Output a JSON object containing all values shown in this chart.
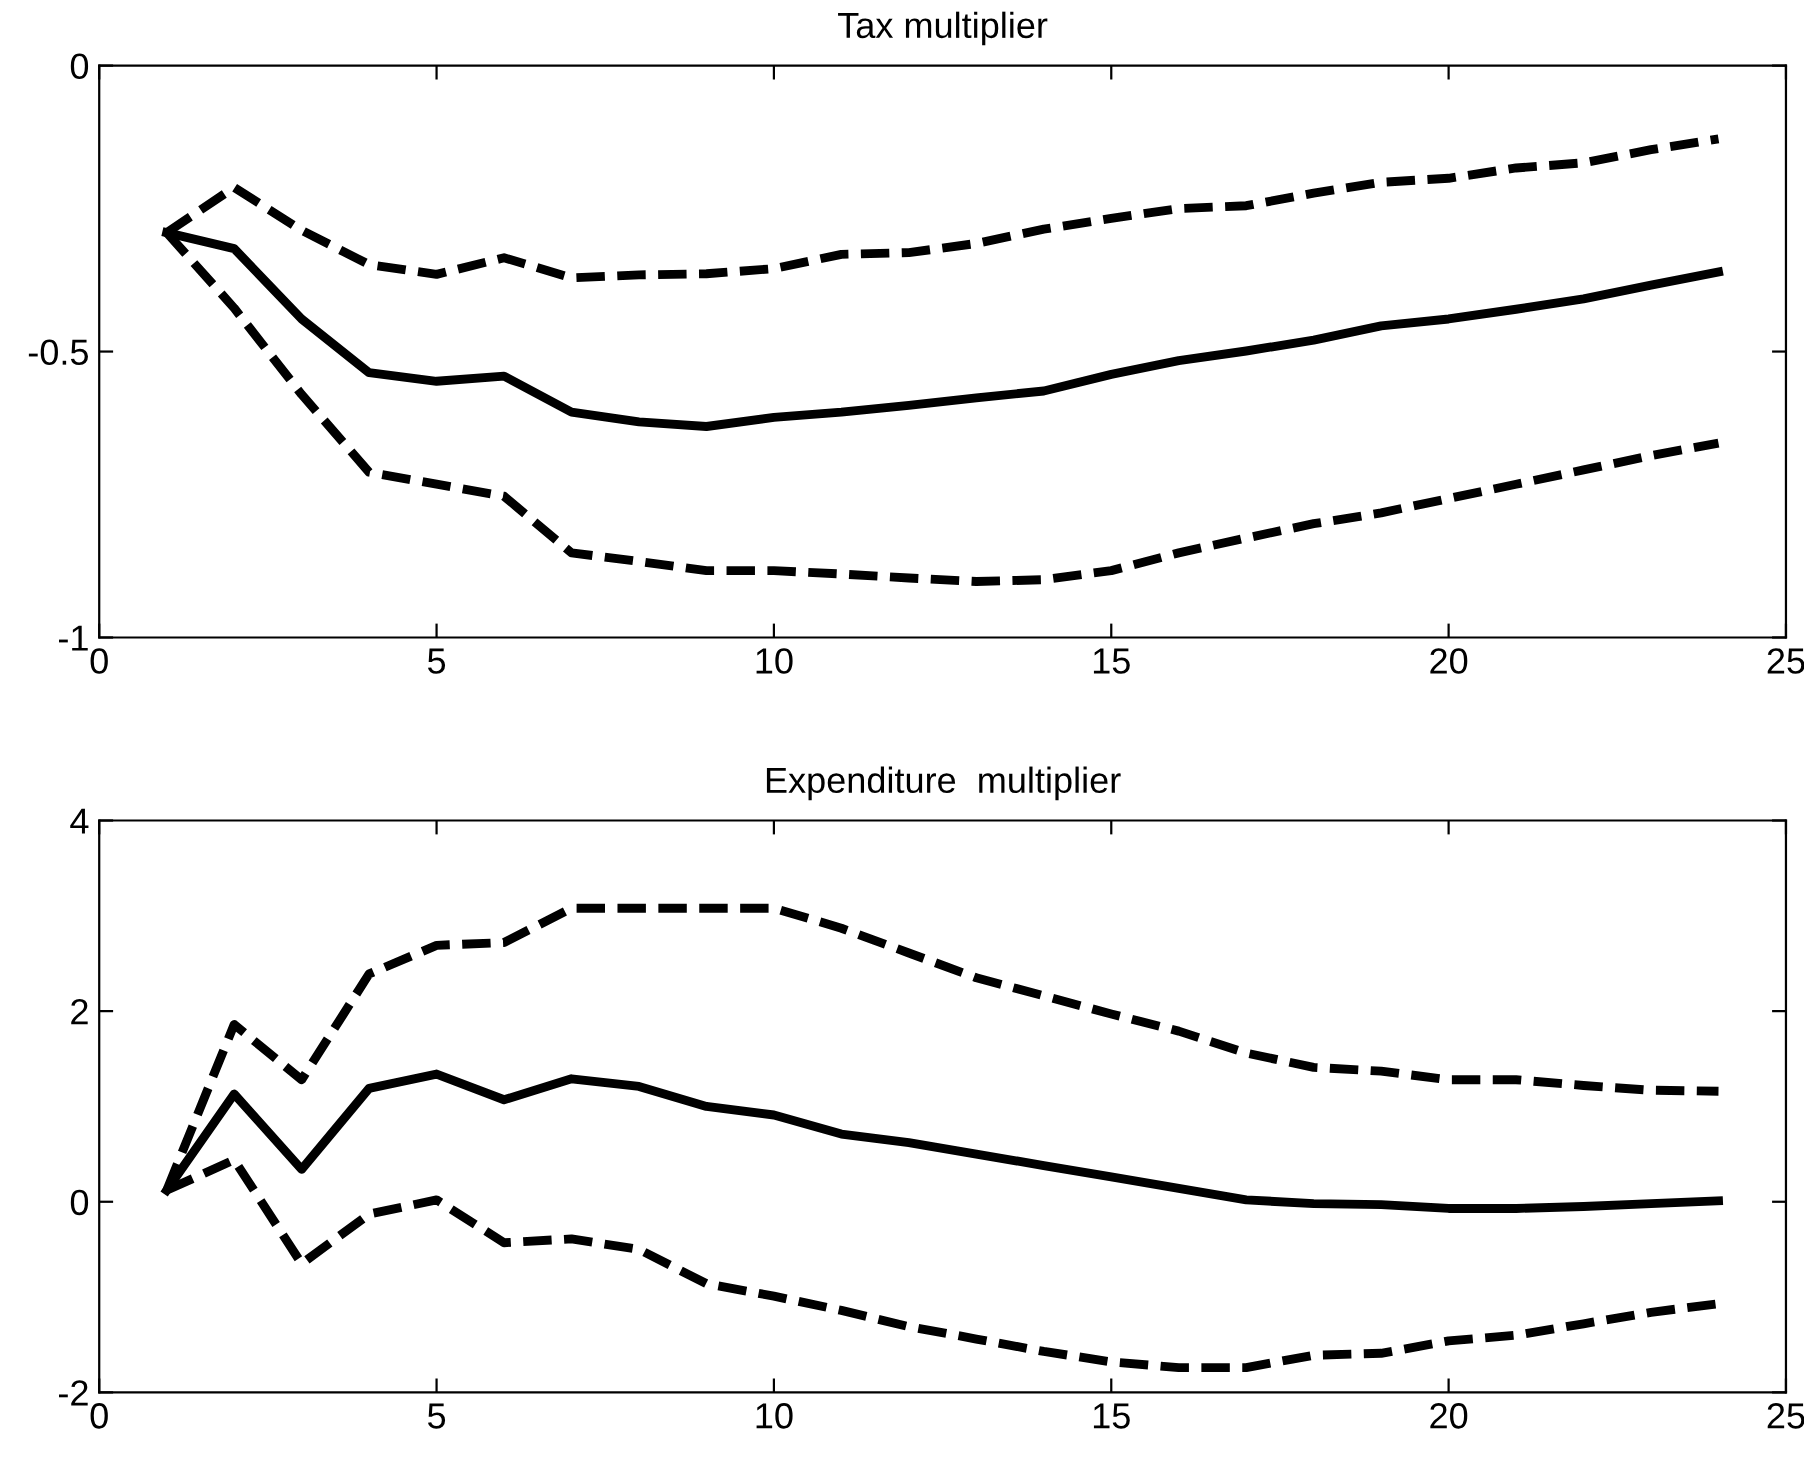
{
  "chart_data": [
    {
      "type": "line",
      "title": "Tax multiplier",
      "x": [
        1,
        2,
        3,
        4,
        5,
        6,
        7,
        8,
        9,
        10,
        11,
        12,
        13,
        14,
        15,
        16,
        17,
        18,
        19,
        20,
        21,
        22,
        23,
        24
      ],
      "xlim": [
        0,
        25
      ],
      "xticks": [
        0,
        5,
        10,
        15,
        20,
        25
      ],
      "ylim": [
        -1,
        0
      ],
      "yticks": [
        -1,
        {
          "value": -0.5,
          "label": "-0.5"
        },
        0
      ],
      "grid": false,
      "legend": false,
      "series": [
        {
          "color": "#000000",
          "line_style": "solid",
          "values": [
            -0.292,
            -0.32,
            -0.443,
            -0.537,
            -0.552,
            -0.543,
            -0.606,
            -0.623,
            -0.631,
            -0.615,
            -0.606,
            -0.594,
            -0.581,
            -0.569,
            -0.54,
            -0.516,
            -0.499,
            -0.48,
            -0.455,
            -0.443,
            -0.426,
            -0.408,
            -0.384,
            -0.361
          ]
        },
        {
          "color": "#000000",
          "line_style": "dashed",
          "values": [
            -0.292,
            -0.213,
            -0.288,
            -0.348,
            -0.365,
            -0.336,
            -0.371,
            -0.366,
            -0.364,
            -0.355,
            -0.33,
            -0.327,
            -0.311,
            -0.286,
            -0.267,
            -0.25,
            -0.245,
            -0.223,
            -0.204,
            -0.197,
            -0.179,
            -0.17,
            -0.147,
            -0.128
          ]
        },
        {
          "color": "#000000",
          "line_style": "dashed",
          "values": [
            -0.292,
            -0.424,
            -0.575,
            -0.711,
            -0.732,
            -0.753,
            -0.852,
            -0.867,
            -0.883,
            -0.883,
            -0.889,
            -0.896,
            -0.902,
            -0.899,
            -0.883,
            -0.852,
            -0.826,
            -0.801,
            -0.782,
            -0.757,
            -0.732,
            -0.707,
            -0.682,
            -0.66
          ]
        }
      ]
    },
    {
      "type": "line",
      "title": "Expenditure  multiplier",
      "x": [
        1,
        2,
        3,
        4,
        5,
        6,
        7,
        8,
        9,
        10,
        11,
        12,
        13,
        14,
        15,
        16,
        17,
        18,
        19,
        20,
        21,
        22,
        23,
        24
      ],
      "xlim": [
        0,
        25
      ],
      "xticks": [
        0,
        5,
        10,
        15,
        20,
        25
      ],
      "ylim": [
        -2,
        4
      ],
      "yticks": [
        -2,
        0,
        2,
        4
      ],
      "grid": false,
      "legend": false,
      "series": [
        {
          "color": "#000000",
          "line_style": "solid",
          "values": [
            0.12,
            1.13,
            0.34,
            1.19,
            1.34,
            1.07,
            1.29,
            1.21,
            1.0,
            0.91,
            0.71,
            0.62,
            0.5,
            0.38,
            0.26,
            0.14,
            0.02,
            -0.02,
            -0.03,
            -0.07,
            -0.07,
            -0.05,
            -0.02,
            0.01
          ]
        },
        {
          "color": "#000000",
          "line_style": "dashed",
          "values": [
            0.12,
            1.86,
            1.28,
            2.39,
            2.69,
            2.72,
            3.08,
            3.08,
            3.08,
            3.08,
            2.87,
            2.61,
            2.35,
            2.16,
            1.97,
            1.79,
            1.56,
            1.41,
            1.37,
            1.28,
            1.28,
            1.22,
            1.17,
            1.16
          ]
        },
        {
          "color": "#000000",
          "line_style": "dashed",
          "values": [
            0.12,
            0.44,
            -0.65,
            -0.13,
            0.02,
            -0.43,
            -0.39,
            -0.5,
            -0.86,
            -0.99,
            -1.14,
            -1.31,
            -1.44,
            -1.57,
            -1.68,
            -1.74,
            -1.74,
            -1.61,
            -1.59,
            -1.46,
            -1.4,
            -1.28,
            -1.16,
            -1.07
          ]
        }
      ]
    }
  ]
}
